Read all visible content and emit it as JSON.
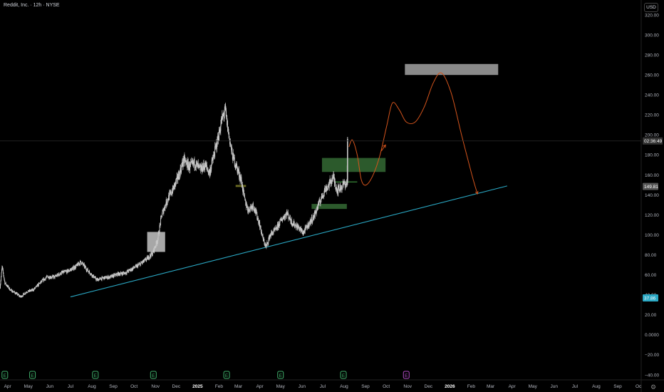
{
  "header": {
    "symbol_title": "Reddit, Inc. · 12h · NYSE",
    "currency": "USD"
  },
  "colors": {
    "background": "#000000",
    "candle": "#c8c8c8",
    "trendline": "#2aa8c4",
    "projection": "#d4541c",
    "zone_green": "#2c5a2c",
    "zone_gray": "#b0b0b0",
    "zone_olive": "#6b6b22",
    "label_gray": "#555555",
    "label_teal": "#2aa8c4",
    "earnings_green": "#3fae6a",
    "earnings_purple": "#b24cc6"
  },
  "chart_data": {
    "type": "candlestick",
    "title": "Reddit, Inc. · 12h · NYSE",
    "currency": "USD",
    "ylim": [
      -45,
      335
    ],
    "y_ticks": [
      320,
      300,
      280,
      260,
      240,
      220,
      200,
      180,
      160,
      140,
      120,
      100,
      80,
      60,
      40,
      20,
      0,
      -20,
      -40
    ],
    "y_tick_labels": [
      "320.00",
      "300.00",
      "280.00",
      "260.00",
      "240.00",
      "220.00",
      "200.00",
      "180.00",
      "160.00",
      "140.00",
      "120.00",
      "100.00",
      "80.00",
      "60.00",
      "40.00",
      "20.00",
      "0.0000",
      "−20.00",
      "−40.00"
    ],
    "x_range": [
      "2024-03-21",
      "2026-10-05"
    ],
    "x_ticks": [
      {
        "date": "2024-04-01",
        "label": "Apr"
      },
      {
        "date": "2024-05-01",
        "label": "May"
      },
      {
        "date": "2024-06-01",
        "label": "Jun"
      },
      {
        "date": "2024-07-01",
        "label": "Jul"
      },
      {
        "date": "2024-08-01",
        "label": "Aug"
      },
      {
        "date": "2024-09-01",
        "label": "Sep"
      },
      {
        "date": "2024-10-01",
        "label": "Oct"
      },
      {
        "date": "2024-11-01",
        "label": "Nov"
      },
      {
        "date": "2024-12-01",
        "label": "Dec"
      },
      {
        "date": "2025-01-01",
        "label": "2025"
      },
      {
        "date": "2025-02-01",
        "label": "Feb"
      },
      {
        "date": "2025-03-01",
        "label": "Mar"
      },
      {
        "date": "2025-04-01",
        "label": "Apr"
      },
      {
        "date": "2025-05-01",
        "label": "May"
      },
      {
        "date": "2025-06-01",
        "label": "Jun"
      },
      {
        "date": "2025-07-01",
        "label": "Jul"
      },
      {
        "date": "2025-08-01",
        "label": "Aug"
      },
      {
        "date": "2025-09-01",
        "label": "Sep"
      },
      {
        "date": "2025-10-01",
        "label": "Oct"
      },
      {
        "date": "2025-11-01",
        "label": "Nov"
      },
      {
        "date": "2025-12-01",
        "label": "Dec"
      },
      {
        "date": "2026-01-01",
        "label": "2026"
      },
      {
        "date": "2026-02-01",
        "label": "Feb"
      },
      {
        "date": "2026-03-01",
        "label": "Mar"
      },
      {
        "date": "2026-04-01",
        "label": "Apr"
      },
      {
        "date": "2026-05-01",
        "label": "May"
      },
      {
        "date": "2026-06-01",
        "label": "Jun"
      },
      {
        "date": "2026-07-01",
        "label": "Jul"
      },
      {
        "date": "2026-08-01",
        "label": "Aug"
      },
      {
        "date": "2026-09-01",
        "label": "Sep"
      },
      {
        "date": "2026-10-01",
        "label": "Oc"
      }
    ],
    "price_path": [
      [
        "2024-03-21",
        48
      ],
      [
        "2024-03-24",
        68
      ],
      [
        "2024-03-28",
        52
      ],
      [
        "2024-04-05",
        45
      ],
      [
        "2024-04-12",
        42
      ],
      [
        "2024-04-20",
        38
      ],
      [
        "2024-04-28",
        43
      ],
      [
        "2024-05-08",
        45
      ],
      [
        "2024-05-18",
        52
      ],
      [
        "2024-05-28",
        58
      ],
      [
        "2024-06-08",
        58
      ],
      [
        "2024-06-18",
        62
      ],
      [
        "2024-06-28",
        64
      ],
      [
        "2024-07-08",
        68
      ],
      [
        "2024-07-16",
        73
      ],
      [
        "2024-07-24",
        66
      ],
      [
        "2024-08-01",
        60
      ],
      [
        "2024-08-08",
        55
      ],
      [
        "2024-08-18",
        57
      ],
      [
        "2024-08-28",
        58
      ],
      [
        "2024-09-08",
        61
      ],
      [
        "2024-09-18",
        62
      ],
      [
        "2024-09-28",
        66
      ],
      [
        "2024-10-08",
        70
      ],
      [
        "2024-10-18",
        75
      ],
      [
        "2024-10-28",
        82
      ],
      [
        "2024-11-04",
        95
      ],
      [
        "2024-11-10",
        120
      ],
      [
        "2024-11-18",
        135
      ],
      [
        "2024-11-26",
        145
      ],
      [
        "2024-12-05",
        160
      ],
      [
        "2024-12-12",
        175
      ],
      [
        "2024-12-20",
        168
      ],
      [
        "2024-12-28",
        172
      ],
      [
        "2025-01-05",
        165
      ],
      [
        "2025-01-12",
        170
      ],
      [
        "2025-01-18",
        162
      ],
      [
        "2025-01-24",
        178
      ],
      [
        "2025-01-30",
        195
      ],
      [
        "2025-02-05",
        215
      ],
      [
        "2025-02-10",
        225
      ],
      [
        "2025-02-14",
        205
      ],
      [
        "2025-02-20",
        180
      ],
      [
        "2025-02-28",
        165
      ],
      [
        "2025-03-05",
        155
      ],
      [
        "2025-03-10",
        135
      ],
      [
        "2025-03-15",
        125
      ],
      [
        "2025-03-22",
        130
      ],
      [
        "2025-03-30",
        115
      ],
      [
        "2025-04-06",
        95
      ],
      [
        "2025-04-10",
        88
      ],
      [
        "2025-04-16",
        100
      ],
      [
        "2025-04-24",
        105
      ],
      [
        "2025-05-02",
        115
      ],
      [
        "2025-05-10",
        122
      ],
      [
        "2025-05-18",
        112
      ],
      [
        "2025-05-26",
        108
      ],
      [
        "2025-06-03",
        102
      ],
      [
        "2025-06-10",
        110
      ],
      [
        "2025-06-18",
        118
      ],
      [
        "2025-06-26",
        132
      ],
      [
        "2025-07-04",
        145
      ],
      [
        "2025-07-10",
        150
      ],
      [
        "2025-07-16",
        158
      ],
      [
        "2025-07-22",
        145
      ],
      [
        "2025-07-28",
        148
      ],
      [
        "2025-08-02",
        152
      ],
      [
        "2025-08-05",
        150
      ],
      [
        "2025-08-06",
        192
      ]
    ],
    "current_price_line": {
      "price": 194,
      "countdown": "02:36:49"
    },
    "price_labels": [
      {
        "price": 148.5,
        "text": "149.81",
        "color": "#555555"
      },
      {
        "price": 37,
        "text": "37.86",
        "color": "#2aa8c4"
      }
    ],
    "trendline": {
      "start": [
        "2024-07-01",
        38
      ],
      "end": [
        "2026-03-25",
        149
      ]
    },
    "zones": [
      {
        "x1": "2024-10-20",
        "x2": "2024-11-15",
        "y1": 83,
        "y2": 103,
        "color": "#b0b0b0",
        "opacity": 0.95
      },
      {
        "x1": "2025-02-25",
        "x2": "2025-03-12",
        "y1": 148,
        "y2": 150,
        "color": "#6b6b22",
        "opacity": 1
      },
      {
        "x1": "2025-06-15",
        "x2": "2025-08-05",
        "y1": 126,
        "y2": 131,
        "color": "#2c5a2c",
        "opacity": 1
      },
      {
        "x1": "2025-06-30",
        "x2": "2025-09-30",
        "y1": 163,
        "y2": 177,
        "color": "#2c5a2c",
        "opacity": 1
      },
      {
        "x1": "2025-10-28",
        "x2": "2026-03-12",
        "y1": 260,
        "y2": 271,
        "color": "#8a8a8a",
        "opacity": 1
      }
    ],
    "support_segment": {
      "x1": "2025-07-18",
      "x2": "2025-08-20",
      "y": 153
    },
    "projection_path": [
      [
        "2025-08-08",
        188
      ],
      [
        "2025-08-13",
        195
      ],
      [
        "2025-08-20",
        180
      ],
      [
        "2025-08-26",
        155
      ],
      [
        "2025-09-02",
        150
      ],
      [
        "2025-09-12",
        160
      ],
      [
        "2025-09-22",
        180
      ],
      [
        "2025-10-02",
        210
      ],
      [
        "2025-10-10",
        232
      ],
      [
        "2025-10-20",
        225
      ],
      [
        "2025-10-30",
        213
      ],
      [
        "2025-11-12",
        213
      ],
      [
        "2025-11-25",
        228
      ],
      [
        "2025-12-08",
        252
      ],
      [
        "2025-12-20",
        262
      ],
      [
        "2026-01-03",
        242
      ],
      [
        "2026-01-18",
        200
      ],
      [
        "2026-02-02",
        160
      ],
      [
        "2026-02-10",
        141
      ]
    ],
    "projection_arrow": {
      "from": [
        "2025-09-24",
        184
      ],
      "to": [
        "2025-09-30",
        190
      ]
    },
    "events": [
      {
        "date": "2024-03-28",
        "type": "earnings",
        "letter": "E"
      },
      {
        "date": "2024-05-07",
        "type": "earnings",
        "letter": "E"
      },
      {
        "date": "2024-08-06",
        "type": "earnings",
        "letter": "E"
      },
      {
        "date": "2024-10-29",
        "type": "earnings",
        "letter": "E"
      },
      {
        "date": "2025-02-12",
        "type": "earnings",
        "letter": "E"
      },
      {
        "date": "2025-05-01",
        "type": "earnings",
        "letter": "E"
      },
      {
        "date": "2025-07-31",
        "type": "earnings",
        "letter": "E"
      },
      {
        "date": "2025-10-30",
        "type": "earnings_upcoming",
        "letter": "E"
      }
    ]
  },
  "settings_icon": "gear-icon"
}
